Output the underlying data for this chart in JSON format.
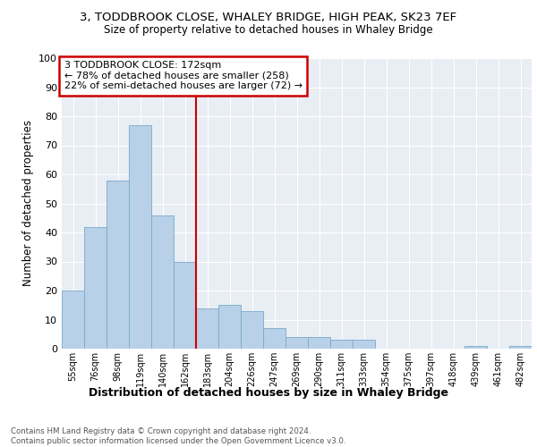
{
  "title1": "3, TODDBROOK CLOSE, WHALEY BRIDGE, HIGH PEAK, SK23 7EF",
  "title2": "Size of property relative to detached houses in Whaley Bridge",
  "xlabel": "Distribution of detached houses by size in Whaley Bridge",
  "ylabel": "Number of detached properties",
  "footnote": "Contains HM Land Registry data © Crown copyright and database right 2024.\nContains public sector information licensed under the Open Government Licence v3.0.",
  "annotation_line1": "3 TODDBROOK CLOSE: 172sqm",
  "annotation_line2": "← 78% of detached houses are smaller (258)",
  "annotation_line3": "22% of semi-detached houses are larger (72) →",
  "bar_labels": [
    "55sqm",
    "76sqm",
    "98sqm",
    "119sqm",
    "140sqm",
    "162sqm",
    "183sqm",
    "204sqm",
    "226sqm",
    "247sqm",
    "269sqm",
    "290sqm",
    "311sqm",
    "333sqm",
    "354sqm",
    "375sqm",
    "397sqm",
    "418sqm",
    "439sqm",
    "461sqm",
    "482sqm"
  ],
  "bar_values": [
    20,
    42,
    58,
    77,
    46,
    30,
    14,
    15,
    13,
    7,
    4,
    4,
    3,
    3,
    0,
    0,
    0,
    0,
    1,
    0,
    1
  ],
  "bar_color": "#b8d0e8",
  "bar_edge_color": "#7aaacb",
  "vline_x": 5.5,
  "vline_color": "#cc0000",
  "annotation_box_color": "#cc0000",
  "background_color": "#e8eef4",
  "ylim": [
    0,
    100
  ],
  "yticks": [
    0,
    10,
    20,
    30,
    40,
    50,
    60,
    70,
    80,
    90,
    100
  ]
}
